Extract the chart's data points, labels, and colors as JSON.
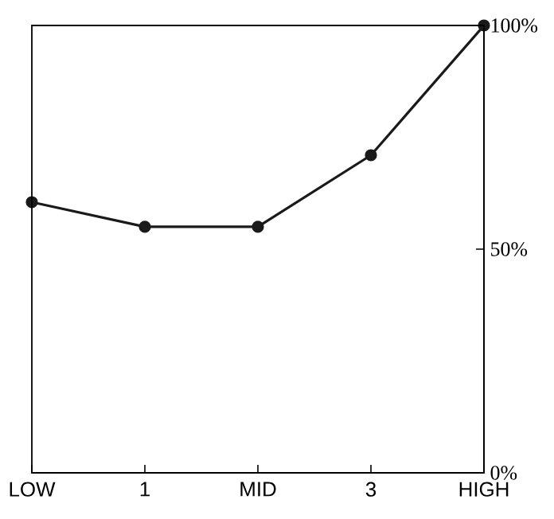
{
  "chart_data": {
    "type": "line",
    "categories": [
      "LOW",
      "1",
      "MID",
      "3",
      "HIGH"
    ],
    "series": [
      {
        "color": "#1a1a1a",
        "values": [
          60.5,
          55,
          55,
          71,
          100
        ]
      }
    ],
    "ylim": [
      0,
      100
    ],
    "yticks": [
      {
        "value": 0,
        "label": "0%"
      },
      {
        "value": 50,
        "label": "50%"
      },
      {
        "value": 100,
        "label": "100%"
      }
    ],
    "marker": "circle",
    "line_style": "solid"
  }
}
